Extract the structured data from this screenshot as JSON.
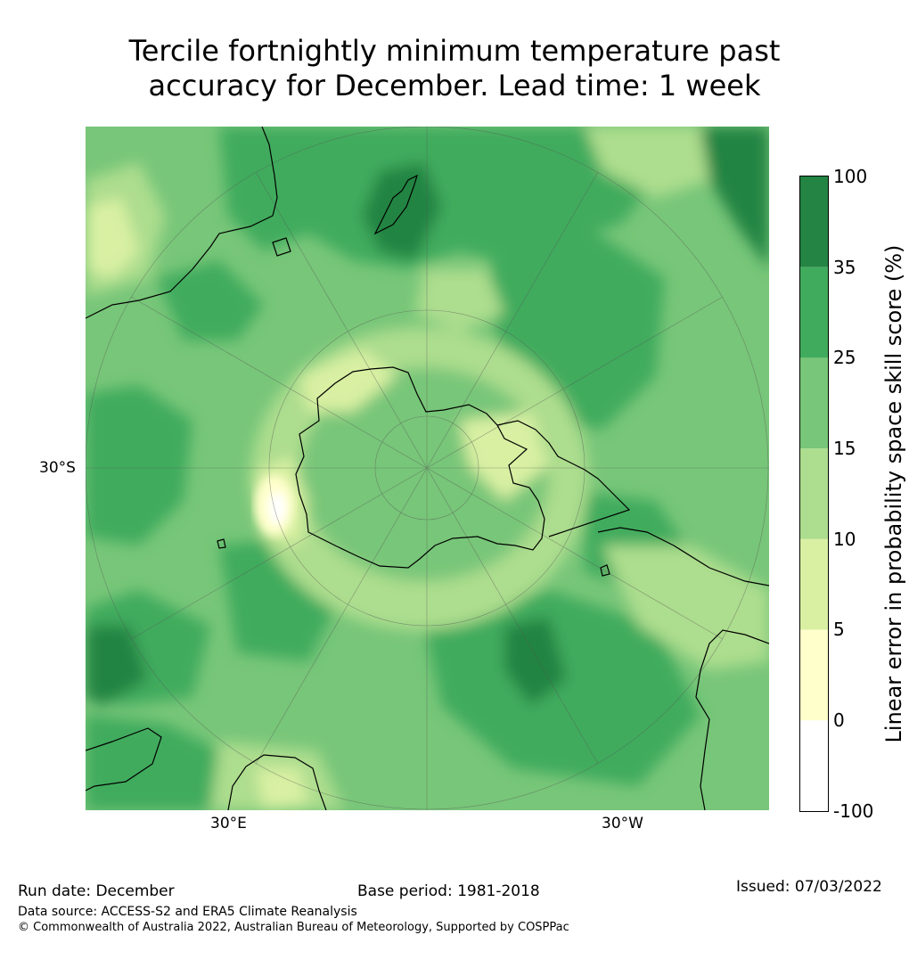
{
  "title": {
    "line1": "Tercile fortnightly minimum temperature past",
    "line2": "accuracy for December. Lead time: 1 week"
  },
  "map": {
    "projection": "South polar stereographic",
    "lon_labels": [
      "30°E",
      "30°W"
    ],
    "lat_labels": [
      "30°S"
    ],
    "features": [
      "Antarctica",
      "New Zealand",
      "Australia",
      "South America",
      "Southern Africa",
      "Madagascar"
    ]
  },
  "legend": {
    "title": "Linear error in probability space skill score (%)",
    "ticks": [
      "100",
      "35",
      "25",
      "15",
      "10",
      "5",
      "0",
      "-100"
    ],
    "bins": [
      {
        "range": "-100 to 0",
        "color": "#ffffff"
      },
      {
        "range": "0 to 5",
        "color": "#ffffcc"
      },
      {
        "range": "5 to 10",
        "color": "#d9f0a3"
      },
      {
        "range": "10 to 15",
        "color": "#addd8e"
      },
      {
        "range": "15 to 25",
        "color": "#78c679"
      },
      {
        "range": "25 to 35",
        "color": "#41ab5d"
      },
      {
        "range": "35 to 100",
        "color": "#238443"
      }
    ]
  },
  "footer": {
    "run_date": "Run date: December",
    "base_period": "Base period: 1981-2018",
    "issued": "Issued: 07/03/2022",
    "data_source": "Data source: ACCESS-S2 and ERA5 Climate Reanalysis",
    "copyright": "© Commonwealth of Australia 2022, Australian Bureau of Meteorology, Supported by COSPPac"
  }
}
